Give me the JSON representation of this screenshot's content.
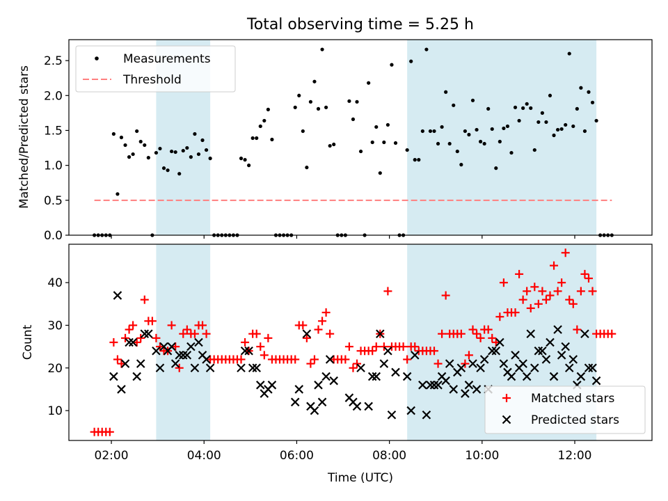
{
  "figure": {
    "title": "Total observing time = 5.25 h",
    "xlabel": "Time (UTC)",
    "shade_color": "#add8e6",
    "shaded_intervals": [
      [
        "02:58",
        "04:08"
      ],
      [
        "08:23",
        "12:28"
      ]
    ],
    "xlim": [
      "01:05",
      "13:40"
    ],
    "xticks": [
      "02:00",
      "04:00",
      "06:00",
      "08:00",
      "10:00",
      "12:00"
    ]
  },
  "chart_data": [
    {
      "type": "scatter",
      "panel": "top",
      "ylabel": "Matched/Predicted stars",
      "ylim": [
        0,
        2.8
      ],
      "yticks": [
        "0.0",
        "0.5",
        "1.0",
        "1.5",
        "2.0",
        "2.5"
      ],
      "legend_position": "top-left",
      "series": [
        {
          "name": "Measurements",
          "kind": "points",
          "color": "#000000",
          "points": [
            [
              "01:38",
              0
            ],
            [
              "01:43",
              0
            ],
            [
              "01:48",
              0
            ],
            [
              "01:53",
              0
            ],
            [
              "01:58",
              0
            ],
            [
              "02:03",
              1.45
            ],
            [
              "02:08",
              0.59
            ],
            [
              "02:13",
              1.4
            ],
            [
              "02:18",
              1.29
            ],
            [
              "02:23",
              1.12
            ],
            [
              "02:28",
              1.16
            ],
            [
              "02:33",
              1.49
            ],
            [
              "02:38",
              1.34
            ],
            [
              "02:43",
              1.29
            ],
            [
              "02:48",
              1.11
            ],
            [
              "02:53",
              0
            ],
            [
              "02:58",
              1.18
            ],
            [
              "03:03",
              1.24
            ],
            [
              "03:08",
              0.96
            ],
            [
              "03:13",
              0.93
            ],
            [
              "03:18",
              1.2
            ],
            [
              "03:23",
              1.19
            ],
            [
              "03:28",
              0.88
            ],
            [
              "03:33",
              1.21
            ],
            [
              "03:38",
              1.25
            ],
            [
              "03:43",
              1.12
            ],
            [
              "03:48",
              1.45
            ],
            [
              "03:53",
              1.16
            ],
            [
              "03:58",
              1.36
            ],
            [
              "04:03",
              1.22
            ],
            [
              "04:08",
              1.1
            ],
            [
              "04:13",
              0
            ],
            [
              "04:18",
              0
            ],
            [
              "04:23",
              0
            ],
            [
              "04:28",
              0
            ],
            [
              "04:33",
              0
            ],
            [
              "04:38",
              0
            ],
            [
              "04:43",
              0
            ],
            [
              "04:48",
              1.1
            ],
            [
              "04:53",
              1.08
            ],
            [
              "04:58",
              1.0
            ],
            [
              "05:03",
              1.39
            ],
            [
              "05:08",
              1.39
            ],
            [
              "05:13",
              1.56
            ],
            [
              "05:18",
              1.64
            ],
            [
              "05:23",
              1.8
            ],
            [
              "05:28",
              1.37
            ],
            [
              "05:33",
              0
            ],
            [
              "05:38",
              0
            ],
            [
              "05:43",
              0
            ],
            [
              "05:48",
              0
            ],
            [
              "05:53",
              0
            ],
            [
              "05:58",
              1.83
            ],
            [
              "06:03",
              2.0
            ],
            [
              "06:08",
              1.49
            ],
            [
              "06:13",
              0.97
            ],
            [
              "06:18",
              1.91
            ],
            [
              "06:23",
              2.2
            ],
            [
              "06:28",
              1.81
            ],
            [
              "06:33",
              2.66
            ],
            [
              "06:38",
              1.83
            ],
            [
              "06:43",
              1.28
            ],
            [
              "06:48",
              1.3
            ],
            [
              "06:53",
              0
            ],
            [
              "06:58",
              0
            ],
            [
              "07:03",
              0
            ],
            [
              "07:08",
              1.92
            ],
            [
              "07:13",
              1.66
            ],
            [
              "07:18",
              1.91
            ],
            [
              "07:23",
              1.2
            ],
            [
              "07:28",
              0
            ],
            [
              "07:33",
              2.18
            ],
            [
              "07:38",
              1.33
            ],
            [
              "07:43",
              1.55
            ],
            [
              "07:48",
              0.89
            ],
            [
              "07:53",
              1.33
            ],
            [
              "07:58",
              1.58
            ],
            [
              "08:03",
              2.44
            ],
            [
              "08:08",
              1.32
            ],
            [
              "08:13",
              0
            ],
            [
              "08:18",
              0
            ],
            [
              "08:23",
              1.22
            ],
            [
              "08:28",
              2.49
            ],
            [
              "08:33",
              1.08
            ],
            [
              "08:38",
              1.08
            ],
            [
              "08:43",
              1.49
            ],
            [
              "08:48",
              2.66
            ],
            [
              "08:53",
              1.49
            ],
            [
              "08:58",
              1.49
            ],
            [
              "09:03",
              1.31
            ],
            [
              "09:08",
              1.55
            ],
            [
              "09:13",
              2.05
            ],
            [
              "09:18",
              1.31
            ],
            [
              "09:23",
              1.86
            ],
            [
              "09:28",
              1.2
            ],
            [
              "09:33",
              1.01
            ],
            [
              "09:38",
              1.49
            ],
            [
              "09:43",
              1.44
            ],
            [
              "09:48",
              1.93
            ],
            [
              "09:53",
              1.51
            ],
            [
              "09:58",
              1.34
            ],
            [
              "10:03",
              1.31
            ],
            [
              "10:08",
              1.81
            ],
            [
              "10:13",
              1.52
            ],
            [
              "10:18",
              0.96
            ],
            [
              "10:23",
              1.34
            ],
            [
              "10:28",
              1.53
            ],
            [
              "10:33",
              1.56
            ],
            [
              "10:38",
              1.18
            ],
            [
              "10:43",
              1.83
            ],
            [
              "10:48",
              1.64
            ],
            [
              "10:53",
              1.82
            ],
            [
              "10:58",
              1.88
            ],
            [
              "11:03",
              1.82
            ],
            [
              "11:08",
              1.22
            ],
            [
              "11:13",
              1.62
            ],
            [
              "11:18",
              1.75
            ],
            [
              "11:23",
              1.62
            ],
            [
              "11:28",
              2.0
            ],
            [
              "11:33",
              1.43
            ],
            [
              "11:38",
              1.51
            ],
            [
              "11:43",
              1.52
            ],
            [
              "11:48",
              1.58
            ],
            [
              "11:53",
              2.6
            ],
            [
              "11:58",
              1.56
            ],
            [
              "12:03",
              1.81
            ],
            [
              "12:08",
              2.11
            ],
            [
              "12:13",
              1.49
            ],
            [
              "12:18",
              2.05
            ],
            [
              "12:23",
              1.9
            ],
            [
              "12:28",
              1.64
            ],
            [
              "12:33",
              0
            ],
            [
              "12:38",
              0
            ],
            [
              "12:43",
              0
            ],
            [
              "12:48",
              0
            ]
          ]
        },
        {
          "name": "Threshold",
          "kind": "dashed-line",
          "color": "#ff7f7f",
          "points": [
            [
              "01:38",
              0.5
            ],
            [
              "12:48",
              0.5
            ]
          ]
        }
      ]
    },
    {
      "type": "scatter",
      "panel": "bottom",
      "ylabel": "Count",
      "ylim": [
        3,
        49
      ],
      "yticks": [
        "10",
        "20",
        "30",
        "40"
      ],
      "legend_position": "bottom-right",
      "x": [
        "01:38",
        "01:43",
        "01:48",
        "01:53",
        "01:58",
        "02:03",
        "02:08",
        "02:13",
        "02:18",
        "02:23",
        "02:28",
        "02:33",
        "02:38",
        "02:43",
        "02:48",
        "02:53",
        "02:58",
        "03:03",
        "03:08",
        "03:13",
        "03:18",
        "03:23",
        "03:28",
        "03:33",
        "03:38",
        "03:43",
        "03:48",
        "03:53",
        "03:58",
        "04:03",
        "04:08",
        "04:13",
        "04:18",
        "04:23",
        "04:28",
        "04:33",
        "04:38",
        "04:43",
        "04:48",
        "04:53",
        "04:58",
        "05:03",
        "05:08",
        "05:13",
        "05:18",
        "05:23",
        "05:28",
        "05:33",
        "05:38",
        "05:43",
        "05:48",
        "05:53",
        "05:58",
        "06:03",
        "06:08",
        "06:13",
        "06:18",
        "06:23",
        "06:28",
        "06:33",
        "06:38",
        "06:43",
        "06:48",
        "06:53",
        "06:58",
        "07:03",
        "07:08",
        "07:13",
        "07:18",
        "07:23",
        "07:28",
        "07:33",
        "07:38",
        "07:43",
        "07:48",
        "07:53",
        "07:58",
        "08:03",
        "08:08",
        "08:13",
        "08:18",
        "08:23",
        "08:28",
        "08:33",
        "08:38",
        "08:43",
        "08:48",
        "08:53",
        "08:58",
        "09:03",
        "09:08",
        "09:13",
        "09:18",
        "09:23",
        "09:28",
        "09:33",
        "09:38",
        "09:43",
        "09:48",
        "09:53",
        "09:58",
        "10:03",
        "10:08",
        "10:13",
        "10:18",
        "10:23",
        "10:28",
        "10:33",
        "10:38",
        "10:43",
        "10:48",
        "10:53",
        "10:58",
        "11:03",
        "11:08",
        "11:13",
        "11:18",
        "11:23",
        "11:28",
        "11:33",
        "11:38",
        "11:43",
        "11:48",
        "11:53",
        "11:58",
        "12:03",
        "12:08",
        "12:13",
        "12:18",
        "12:23",
        "12:28",
        "12:33",
        "12:38",
        "12:43",
        "12:48"
      ],
      "series": [
        {
          "name": "Matched stars",
          "marker": "+",
          "color": "#ff0000",
          "values": [
            5,
            5,
            5,
            5,
            5,
            26,
            22,
            21,
            27,
            29,
            30,
            26,
            27,
            36,
            31,
            31,
            27,
            25,
            24,
            24,
            30,
            25,
            20,
            28,
            29,
            28,
            28,
            30,
            30,
            28,
            22,
            22,
            22,
            22,
            22,
            22,
            22,
            22,
            22,
            26,
            24,
            28,
            28,
            25,
            23,
            27,
            22,
            22,
            22,
            22,
            22,
            22,
            22,
            30,
            30,
            27,
            21,
            22,
            29,
            31,
            33,
            28,
            22,
            22,
            22,
            22,
            25,
            20,
            21,
            24,
            24,
            24,
            24,
            25,
            28,
            25,
            38,
            25,
            25,
            25,
            25,
            22,
            25,
            25,
            24,
            24,
            24,
            24,
            24,
            21,
            28,
            37,
            28,
            28,
            28,
            28,
            21,
            23,
            29,
            28,
            27,
            29,
            29,
            27,
            26,
            32,
            40,
            33,
            33,
            33,
            42,
            36,
            38,
            34,
            39,
            35,
            38,
            36,
            37,
            44,
            38,
            40,
            47,
            36,
            35,
            29,
            38,
            42,
            41,
            38,
            28,
            28,
            28,
            28,
            28
          ]
        },
        {
          "name": "Predicted stars",
          "marker": "x",
          "color": "#000000",
          "values": [
            null,
            null,
            null,
            null,
            null,
            18,
            37,
            15,
            21,
            26,
            26,
            18,
            21,
            28,
            28,
            null,
            24,
            20,
            25,
            24,
            25,
            21,
            23,
            23,
            23,
            25,
            20,
            26,
            23,
            22,
            20,
            null,
            null,
            null,
            null,
            null,
            null,
            null,
            20,
            24,
            24,
            20,
            20,
            16,
            14,
            15,
            16,
            null,
            null,
            null,
            null,
            null,
            12,
            15,
            null,
            28,
            11,
            10,
            16,
            12,
            18,
            22,
            17,
            null,
            null,
            null,
            13,
            12,
            11,
            20,
            null,
            11,
            18,
            18,
            28,
            21,
            24,
            9,
            19,
            null,
            null,
            18,
            10,
            23,
            null,
            16,
            9,
            16,
            16,
            16,
            18,
            17,
            21,
            15,
            19,
            20,
            14,
            16,
            21,
            15,
            20,
            22,
            15,
            24,
            24,
            26,
            21,
            19,
            18,
            23,
            20,
            21,
            18,
            28,
            20,
            24,
            24,
            22,
            26,
            18,
            29,
            23,
            25,
            20,
            22,
            16,
            18,
            28,
            20,
            20,
            17,
            null,
            null,
            null,
            null
          ]
        }
      ]
    }
  ]
}
